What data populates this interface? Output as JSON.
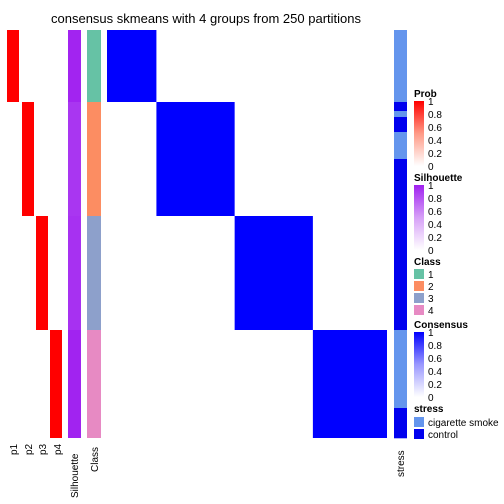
{
  "chart_data": {
    "type": "heatmap",
    "title": "consensus skmeans with 4 groups from 250 partitions",
    "group_sizes": [
      24,
      38,
      38,
      36
    ],
    "column_labels": [
      "p1",
      "p2",
      "p3",
      "p4",
      "Silhouette",
      "Class",
      "stress"
    ],
    "membership_probability": {
      "note_values": "each sample has probability ~1 for its own class",
      "group1": [
        1,
        0,
        0,
        0
      ],
      "group2": [
        0,
        1,
        0,
        0
      ],
      "group3": [
        0,
        0,
        1,
        0
      ],
      "group4": [
        0,
        0,
        0,
        1
      ]
    },
    "silhouette": {
      "group1": 0.98,
      "group2": 0.9,
      "group3": 0.92,
      "group4": 0.99
    },
    "consensus_blocks": {
      "within": 1,
      "between": 0
    },
    "stress_pattern": {
      "group1": [
        "cigarette smoke",
        "cigarette smoke",
        "cigarette smoke",
        "cigarette smoke",
        "cigarette smoke",
        "cigarette smoke",
        "cigarette smoke",
        "cigarette smoke",
        "cigarette smoke",
        "cigarette smoke",
        "cigarette smoke",
        "cigarette smoke",
        "cigarette smoke",
        "cigarette smoke",
        "cigarette smoke",
        "cigarette smoke",
        "cigarette smoke",
        "cigarette smoke",
        "cigarette smoke",
        "cigarette smoke",
        "cigarette smoke",
        "cigarette smoke",
        "cigarette smoke",
        "cigarette smoke"
      ],
      "group2": [
        "control",
        "control",
        "control",
        "cigarette smoke",
        "cigarette smoke",
        "control",
        "control",
        "control",
        "control",
        "control",
        "cigarette smoke",
        "cigarette smoke",
        "cigarette smoke",
        "cigarette smoke",
        "cigarette smoke",
        "cigarette smoke",
        "cigarette smoke",
        "cigarette smoke",
        "cigarette smoke",
        "control",
        "control",
        "control",
        "control",
        "control",
        "control",
        "control",
        "control",
        "control",
        "control",
        "control",
        "control",
        "control",
        "control",
        "control",
        "control",
        "control",
        "control",
        "control"
      ],
      "group3": [
        "control",
        "control",
        "control",
        "control",
        "control",
        "control",
        "control",
        "control",
        "control",
        "control",
        "control",
        "control",
        "control",
        "control",
        "control",
        "control",
        "control",
        "control",
        "control",
        "control",
        "control",
        "control",
        "control",
        "control",
        "control",
        "control",
        "control",
        "control",
        "control",
        "control",
        "control",
        "control",
        "control",
        "control",
        "control",
        "control",
        "control",
        "control"
      ],
      "group4": [
        "cigarette smoke",
        "cigarette smoke",
        "cigarette smoke",
        "cigarette smoke",
        "cigarette smoke",
        "cigarette smoke",
        "cigarette smoke",
        "cigarette smoke",
        "cigarette smoke",
        "cigarette smoke",
        "cigarette smoke",
        "cigarette smoke",
        "cigarette smoke",
        "cigarette smoke",
        "cigarette smoke",
        "cigarette smoke",
        "cigarette smoke",
        "cigarette smoke",
        "cigarette smoke",
        "cigarette smoke",
        "cigarette smoke",
        "cigarette smoke",
        "cigarette smoke",
        "cigarette smoke",
        "cigarette smoke",
        "cigarette smoke",
        "control",
        "control",
        "control",
        "control",
        "control",
        "control",
        "control",
        "control",
        "control",
        "control"
      ]
    },
    "legends": {
      "prob": {
        "title": "Prob",
        "ticks": [
          "1",
          "0.8",
          "0.6",
          "0.4",
          "0.2",
          "0"
        ]
      },
      "silhouette": {
        "title": "Silhouette",
        "ticks": [
          "1",
          "0.8",
          "0.6",
          "0.4",
          "0.2",
          "0"
        ]
      },
      "class": {
        "title": "Class",
        "items": [
          "1",
          "2",
          "3",
          "4"
        ]
      },
      "consensus": {
        "title": "Consensus",
        "ticks": [
          "1",
          "0.8",
          "0.6",
          "0.4",
          "0.2",
          "0"
        ]
      },
      "stress": {
        "title": "stress",
        "items": [
          "cigarette smoke",
          "control"
        ]
      }
    },
    "colors": {
      "prob_high": "#ff0000",
      "silhouette": "#a020f0",
      "consensus": "#0000ff",
      "class": [
        "#66c2a5",
        "#fc8d62",
        "#8da0cb",
        "#e78ac3"
      ],
      "stress": {
        "cigarette smoke": "#6495ed",
        "control": "#0000ee"
      }
    }
  }
}
